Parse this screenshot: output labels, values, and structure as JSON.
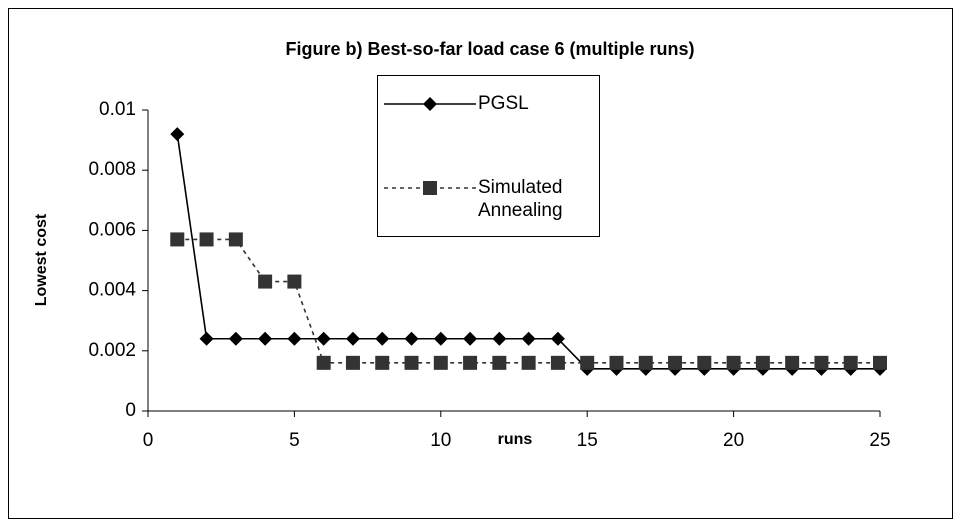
{
  "chart_data": {
    "type": "line",
    "title": "Figure b) Best-so-far load case 6 (multiple runs)",
    "x_label": "runs",
    "y_label": "Lowest cost",
    "x": [
      1,
      2,
      3,
      4,
      5,
      6,
      7,
      8,
      9,
      10,
      11,
      12,
      13,
      14,
      15,
      16,
      17,
      18,
      19,
      20,
      21,
      22,
      23,
      24,
      25
    ],
    "series": [
      {
        "name": "PGSL",
        "color": "#000000",
        "marker": "diamond",
        "dash": false,
        "values": [
          0.0092,
          0.0024,
          0.0024,
          0.0024,
          0.0024,
          0.0024,
          0.0024,
          0.0024,
          0.0024,
          0.0024,
          0.0024,
          0.0024,
          0.0024,
          0.0024,
          0.0014,
          0.0014,
          0.0014,
          0.0014,
          0.0014,
          0.0014,
          0.0014,
          0.0014,
          0.0014,
          0.0014,
          0.0014
        ]
      },
      {
        "name": "Simulated Annealing",
        "color": "#333333",
        "marker": "square",
        "dash": true,
        "values": [
          0.0057,
          0.0057,
          0.0057,
          0.0043,
          0.0043,
          0.0016,
          0.0016,
          0.0016,
          0.0016,
          0.0016,
          0.0016,
          0.0016,
          0.0016,
          0.0016,
          0.0016,
          0.0016,
          0.0016,
          0.0016,
          0.0016,
          0.0016,
          0.0016,
          0.0016,
          0.0016,
          0.0016,
          0.0016
        ]
      }
    ],
    "xlim": [
      0,
      25
    ],
    "xticks": [
      0,
      5,
      10,
      15,
      20,
      25
    ],
    "ylim": [
      0,
      0.01
    ],
    "yticks": [
      0,
      0.002,
      0.004,
      0.006,
      0.008,
      0.01
    ],
    "grid": false
  }
}
